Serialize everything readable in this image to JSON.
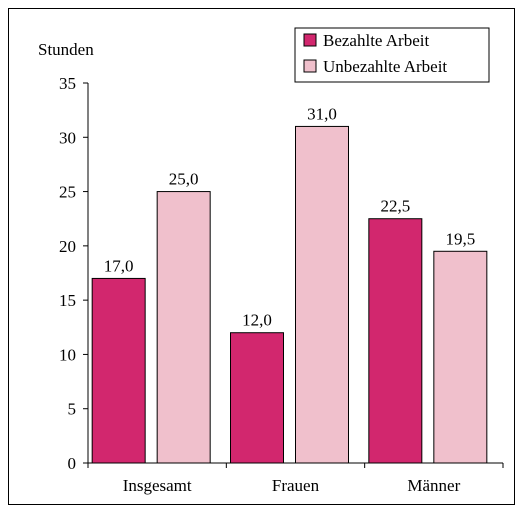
{
  "chart_data": {
    "type": "bar",
    "ylabel": "Stunden",
    "ylim": [
      0,
      35
    ],
    "yticks": [
      0,
      5,
      10,
      15,
      20,
      25,
      30,
      35
    ],
    "categories": [
      "Insgesamt",
      "Frauen",
      "Männer"
    ],
    "series": [
      {
        "name": "Bezahlte Arbeit",
        "color": "#d2276e",
        "values": [
          17.0,
          12.0,
          22.5
        ],
        "labels": [
          "17,0",
          "12,0",
          "22,5"
        ]
      },
      {
        "name": "Unbezahlte Arbeit",
        "color": "#f0c0cc",
        "values": [
          25.0,
          31.0,
          19.5
        ],
        "labels": [
          "25,0",
          "31,0",
          "19,5"
        ]
      }
    ],
    "legend_position": "top-right"
  }
}
